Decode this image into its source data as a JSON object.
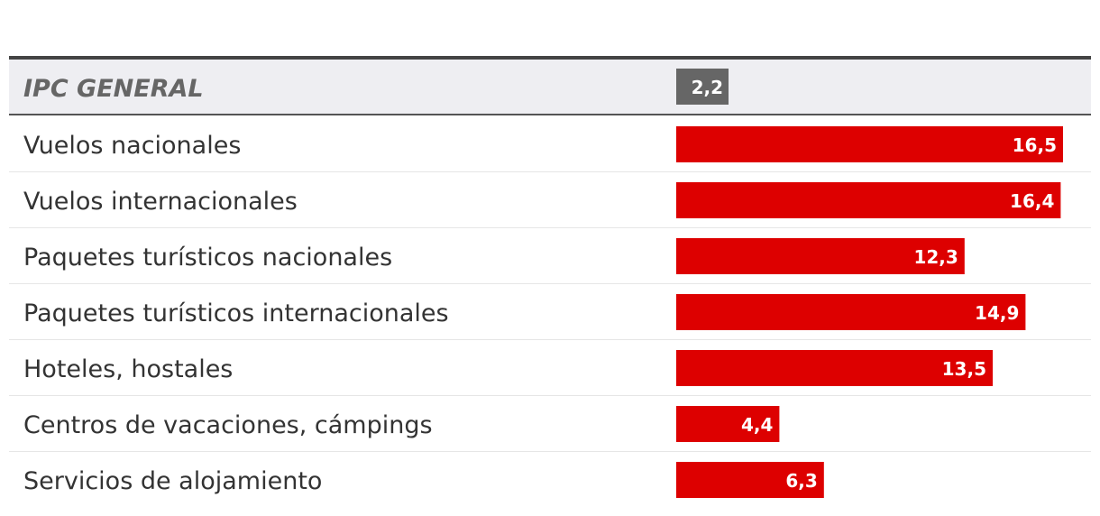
{
  "colors": {
    "bar": "#dd0000",
    "header_bar": "#666666",
    "header_bg": "#eeeef2",
    "text": "#333333",
    "header_text": "#666666",
    "divider": "#e6e6e6",
    "top_rule": "#444444"
  },
  "chart_data": {
    "type": "bar",
    "orientation": "horizontal",
    "title": "",
    "xlabel": "",
    "ylabel": "",
    "xlim": [
      0,
      17
    ],
    "grid": false,
    "header": {
      "category": "IPC GENERAL",
      "value": 2.2,
      "value_label": "2,2"
    },
    "categories": [
      "Vuelos nacionales",
      "Vuelos internacionales",
      "Paquetes turísticos nacionales",
      "Paquetes turísticos internacionales",
      "Hoteles, hostales",
      "Centros de vacaciones, cámpings",
      "Servicios de alojamiento"
    ],
    "values": [
      16.5,
      16.4,
      12.3,
      14.9,
      13.5,
      4.4,
      6.3
    ],
    "value_labels": [
      "16,5",
      "16,4",
      "12,3",
      "14,9",
      "13,5",
      "4,4",
      "6,3"
    ]
  }
}
